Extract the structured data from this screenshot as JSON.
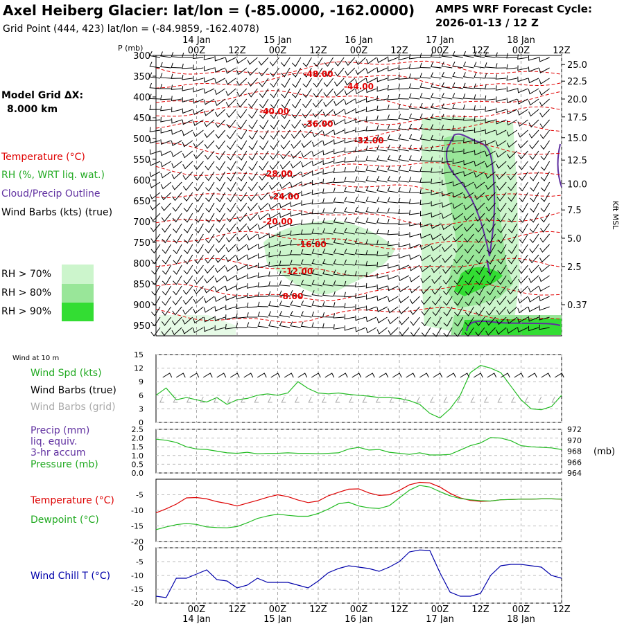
{
  "header": {
    "title": "Axel Heiberg Glacier:  lat/lon = (-85.0000, -162.0000)",
    "subtitle": "Grid Point (444, 423) lat/lon = (-84.9859, -162.4078)",
    "cycle_line1": "AMPS WRF Forecast Cycle:",
    "cycle_line2": "2026-01-13 / 12  Z",
    "grid_label": "Model Grid ΔX:",
    "grid_value": "8.000 km"
  },
  "time_axis": {
    "ticks": [
      "00Z",
      "12Z",
      "00Z",
      "12Z",
      "00Z",
      "12Z",
      "00Z",
      "12Z",
      "00Z",
      "12Z"
    ],
    "dates": [
      "14 Jan",
      "15 Jan",
      "16 Jan",
      "17 Jan",
      "18 Jan"
    ],
    "range_hours": [
      0,
      120
    ]
  },
  "legend": {
    "temperature": "Temperature (°C)",
    "rh": "RH (%, WRT liq. wat.)",
    "cloud": "Cloud/Precip Outline",
    "wind": "Wind Barbs (kts) (true)",
    "rh70": "RH > 70%",
    "rh80": "RH > 80%",
    "rh90": "RH > 90%",
    "colors": {
      "temperature": "#e00000",
      "rh70": "#ccf5cc",
      "rh80": "#99e699",
      "rh90": "#33dd33",
      "cloud": "#6030a0"
    }
  },
  "chart_data": [
    {
      "type": "heatmap",
      "name": "vertical cross-section",
      "y_axis_label": "P (mb)",
      "y_ticks": [
        300,
        350,
        400,
        450,
        500,
        550,
        600,
        650,
        700,
        750,
        800,
        850,
        900,
        950
      ],
      "ylim": [
        300,
        975
      ],
      "right_axis_label": "Kft MSL",
      "right_ticks": [
        "25.0",
        "22.5",
        "20.0",
        "17.5",
        "15.0",
        "12.5",
        "10.0",
        "7.5",
        "5.0",
        "2.5",
        "0.37"
      ],
      "right_tick_p": [
        322,
        362,
        405,
        448,
        498,
        552,
        609,
        672,
        740,
        808,
        900
      ],
      "temperature_labels": [
        {
          "text": "-48.00",
          "x": 48,
          "p": 345
        },
        {
          "text": "-44.00",
          "x": 60,
          "p": 375
        },
        {
          "text": "-40.00",
          "x": 35,
          "p": 435
        },
        {
          "text": "-36.00",
          "x": 48,
          "p": 465
        },
        {
          "text": "-32.00",
          "x": 63,
          "p": 505
        },
        {
          "text": "-28.00",
          "x": 36,
          "p": 585
        },
        {
          "text": "-24.00",
          "x": 38,
          "p": 640
        },
        {
          "text": "-20.00",
          "x": 36,
          "p": 700
        },
        {
          "text": "-16.00",
          "x": 46,
          "p": 755
        },
        {
          "text": "-12.00",
          "x": 42,
          "p": 820
        },
        {
          "text": "-8.00",
          "x": 40,
          "p": 880
        }
      ]
    },
    {
      "type": "line",
      "name": "wind panel",
      "header": "Wind at 10 m",
      "labels": {
        "speed": "Wind Spd (kts)",
        "barbs_true": "Wind Barbs (true)",
        "barbs_grid": "Wind Barbs (grid)"
      },
      "y_ticks": [
        0,
        3,
        6,
        9,
        12,
        15
      ],
      "ylim": [
        0,
        15
      ],
      "series": [
        {
          "name": "Wind Spd (kts)",
          "color": "#22bb22",
          "x": [
            0,
            3,
            6,
            9,
            12,
            15,
            18,
            21,
            24,
            27,
            30,
            33,
            36,
            39,
            42,
            45,
            48,
            51,
            54,
            57,
            60,
            63,
            66,
            69,
            72,
            75,
            78,
            81,
            84,
            87,
            90,
            93,
            96,
            99,
            102,
            105,
            108,
            111,
            114,
            117,
            120
          ],
          "values": [
            6,
            7.6,
            5,
            5.5,
            5,
            4.5,
            5.5,
            4,
            5,
            5.3,
            6,
            6.3,
            6,
            6.5,
            9,
            7.5,
            6.5,
            6.3,
            6.5,
            6.2,
            6,
            5.8,
            5.5,
            5.5,
            5.3,
            4.8,
            4,
            2,
            1,
            3,
            6,
            11,
            12.6,
            12,
            11,
            8,
            5,
            3,
            2.8,
            3.5,
            6
          ]
        }
      ]
    },
    {
      "type": "line",
      "name": "precip and pressure panel",
      "labels": {
        "precip1": "Precip (mm)",
        "precip2": "liq. equiv.",
        "precip3": "3-hr accum",
        "pressure": "Pressure (mb)"
      },
      "right_unit": "(mb)",
      "y_ticks": [
        "0.0",
        "0.5",
        "1.0",
        "1.5",
        "2.0",
        "2.5"
      ],
      "ylim": [
        0,
        2.5
      ],
      "right_ticks": [
        "964",
        "966",
        "968",
        "970",
        "972"
      ],
      "right_lim": [
        964,
        972
      ],
      "series": [
        {
          "name": "Pressure (mb)",
          "color": "#22bb22",
          "x": [
            0,
            3,
            6,
            9,
            12,
            15,
            18,
            21,
            24,
            27,
            30,
            33,
            36,
            39,
            42,
            45,
            48,
            51,
            54,
            57,
            60,
            63,
            66,
            69,
            72,
            75,
            78,
            81,
            84,
            87,
            90,
            93,
            96,
            99,
            102,
            105,
            108,
            111,
            114,
            117,
            120
          ],
          "values": [
            970.2,
            970.0,
            969.6,
            968.8,
            968.4,
            968.3,
            968.0,
            967.7,
            967.6,
            967.8,
            967.5,
            967.6,
            967.6,
            967.7,
            967.6,
            967.6,
            967.5,
            967.6,
            967.7,
            968.4,
            968.7,
            968.2,
            968.3,
            967.8,
            967.6,
            967.4,
            967.7,
            967.3,
            967.3,
            967.4,
            968.2,
            969.0,
            969.5,
            970.5,
            970.4,
            969.9,
            969.0,
            968.8,
            968.7,
            968.6,
            968.3
          ]
        }
      ]
    },
    {
      "type": "line",
      "name": "temperature panel",
      "labels": {
        "temp": "Temperature (°C)",
        "dew": "Dewpoint (°C)"
      },
      "y_ticks": [
        -5,
        -10,
        -15,
        -20
      ],
      "ylim": [
        -20,
        0
      ],
      "x": [
        0,
        3,
        6,
        9,
        12,
        15,
        18,
        21,
        24,
        27,
        30,
        33,
        36,
        39,
        42,
        45,
        48,
        51,
        54,
        57,
        60,
        63,
        66,
        69,
        72,
        75,
        78,
        81,
        84,
        87,
        90,
        93,
        96,
        99,
        102,
        105,
        108,
        111,
        114,
        117,
        120
      ],
      "series": [
        {
          "name": "Temperature (°C)",
          "color": "#dd0000",
          "values": [
            -10.8,
            -9.5,
            -8,
            -6,
            -5.9,
            -6.3,
            -7.2,
            -7.8,
            -8.6,
            -7.7,
            -6.8,
            -5.8,
            -5,
            -5.6,
            -6.7,
            -7.5,
            -7,
            -5.3,
            -4.2,
            -3.2,
            -3.1,
            -4.4,
            -5.2,
            -5,
            -3.6,
            -1.8,
            -1,
            -1.2,
            -2.5,
            -4.5,
            -6,
            -6.8,
            -7.1,
            -7,
            -6.6,
            -6.5,
            -6.4,
            -6.4,
            -6.3,
            -6.3,
            -6.4
          ]
        },
        {
          "name": "Dewpoint (°C)",
          "color": "#22bb22",
          "values": [
            -16.2,
            -15.3,
            -14.6,
            -14.2,
            -14.5,
            -15.3,
            -15.5,
            -15.6,
            -15.2,
            -14,
            -12.6,
            -11.8,
            -11.2,
            -11.6,
            -11.9,
            -11.9,
            -11,
            -9.6,
            -7.9,
            -7.4,
            -8.6,
            -9.2,
            -9.4,
            -8.5,
            -6,
            -3.5,
            -2,
            -2.5,
            -4,
            -5.3,
            -6.2,
            -6.6,
            -6.9,
            -7,
            -6.6,
            -6.5,
            -6.4,
            -6.4,
            -6.3,
            -6.3,
            -6.4
          ]
        }
      ]
    },
    {
      "type": "line",
      "name": "wind chill panel",
      "labels": {
        "wc": "Wind Chill T (°C)"
      },
      "y_ticks": [
        0,
        -5,
        -10,
        -15,
        -20
      ],
      "ylim": [
        -20,
        0
      ],
      "series": [
        {
          "name": "Wind Chill T (°C)",
          "color": "#0000aa",
          "x": [
            0,
            3,
            6,
            9,
            12,
            15,
            18,
            21,
            24,
            27,
            30,
            33,
            36,
            39,
            42,
            45,
            48,
            51,
            54,
            57,
            60,
            63,
            66,
            69,
            72,
            75,
            78,
            81,
            84,
            87,
            90,
            93,
            96,
            99,
            102,
            105,
            108,
            111,
            114,
            117,
            120
          ],
          "values": [
            -17.5,
            -18,
            -11,
            -11,
            -9.5,
            -8,
            -11.5,
            -12,
            -14.5,
            -13.5,
            -11,
            -12.5,
            -12.5,
            -12.5,
            -13.5,
            -14.5,
            -12,
            -9,
            -7.5,
            -6.5,
            -7,
            -7.5,
            -8.5,
            -7,
            -5,
            -1.5,
            -0.8,
            -1,
            -9,
            -16,
            -17.5,
            -17.5,
            -16.5,
            -10,
            -6.5,
            -6,
            -6,
            -6.5,
            -7,
            -10,
            -11
          ]
        }
      ]
    }
  ]
}
